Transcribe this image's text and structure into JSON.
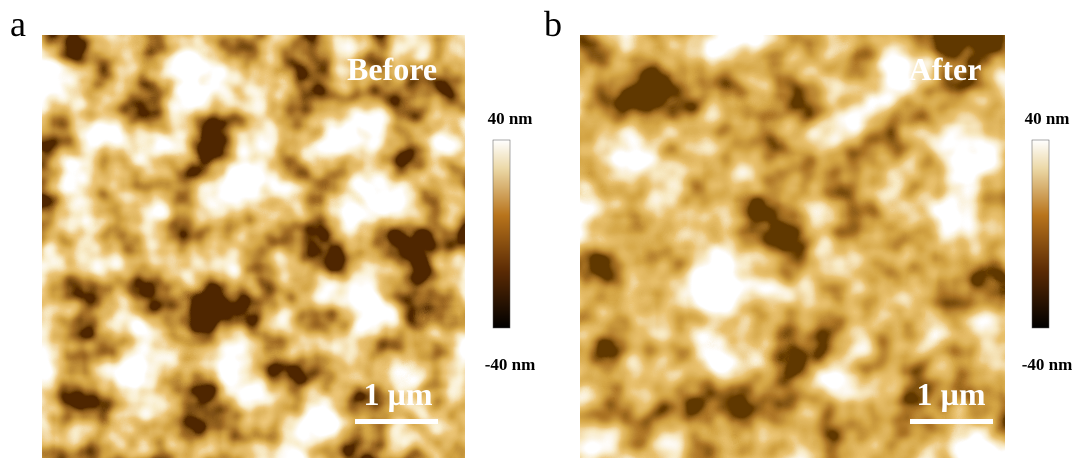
{
  "panels": [
    {
      "label": "a",
      "caption": "Before",
      "scale_bar": "1 µm",
      "colorbar": {
        "max": "40 nm",
        "min": "-40 nm"
      }
    },
    {
      "label": "b",
      "caption": "After",
      "scale_bar": "1 µm",
      "colorbar": {
        "max": "40 nm",
        "min": "-40 nm"
      }
    }
  ]
}
